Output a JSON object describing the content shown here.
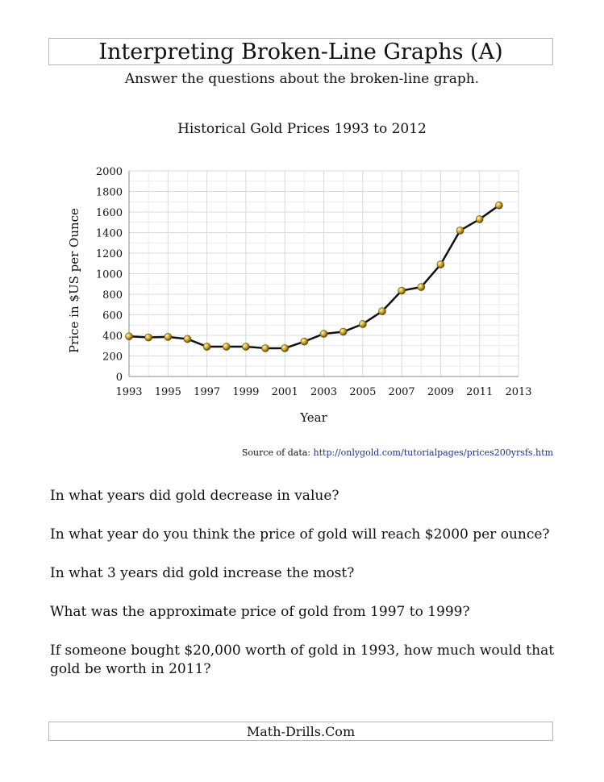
{
  "worksheet": {
    "title": "Interpreting Broken-Line Graphs (A)",
    "subtitle": "Answer the questions about the broken-line graph.",
    "source_label": "Source of data:",
    "source_url": "http://onlygold.com/tutorialpages/prices200yrsfs.htm",
    "questions": [
      "In what years did gold decrease in value?",
      "In what year do you think the price of gold will reach $2000 per ounce?",
      "In what 3 years did gold increase the most?",
      "What was the approximate price of gold from 1997 to 1999?",
      "If someone bought $20,000 worth of gold in 1993, how much would that gold be worth in 2011?"
    ],
    "footer": "Math-Drills.Com"
  },
  "chart_data": {
    "type": "line",
    "title": "Historical Gold Prices 1993 to 2012",
    "xlabel": "Year",
    "ylabel": "Price in $US per Ounce",
    "xlim": [
      1993,
      2013
    ],
    "ylim": [
      0,
      2000
    ],
    "x_ticks": [
      1993,
      1995,
      1997,
      1999,
      2001,
      2003,
      2005,
      2007,
      2009,
      2011,
      2013
    ],
    "y_ticks": [
      0,
      200,
      400,
      600,
      800,
      1000,
      1200,
      1400,
      1600,
      1800,
      2000
    ],
    "grid": true,
    "line_color": "#111111",
    "marker_color": "#c9a21f",
    "series": [
      {
        "x": [
          1993,
          1994,
          1995,
          1996,
          1997,
          1998,
          1999,
          2000,
          2001,
          2002,
          2003,
          2004,
          2005,
          2006,
          2007,
          2008,
          2009,
          2010,
          2011,
          2012
        ],
        "values": [
          390,
          380,
          385,
          365,
          290,
          290,
          290,
          275,
          275,
          340,
          415,
          435,
          510,
          635,
          835,
          870,
          1090,
          1420,
          1530,
          1665
        ]
      }
    ]
  }
}
